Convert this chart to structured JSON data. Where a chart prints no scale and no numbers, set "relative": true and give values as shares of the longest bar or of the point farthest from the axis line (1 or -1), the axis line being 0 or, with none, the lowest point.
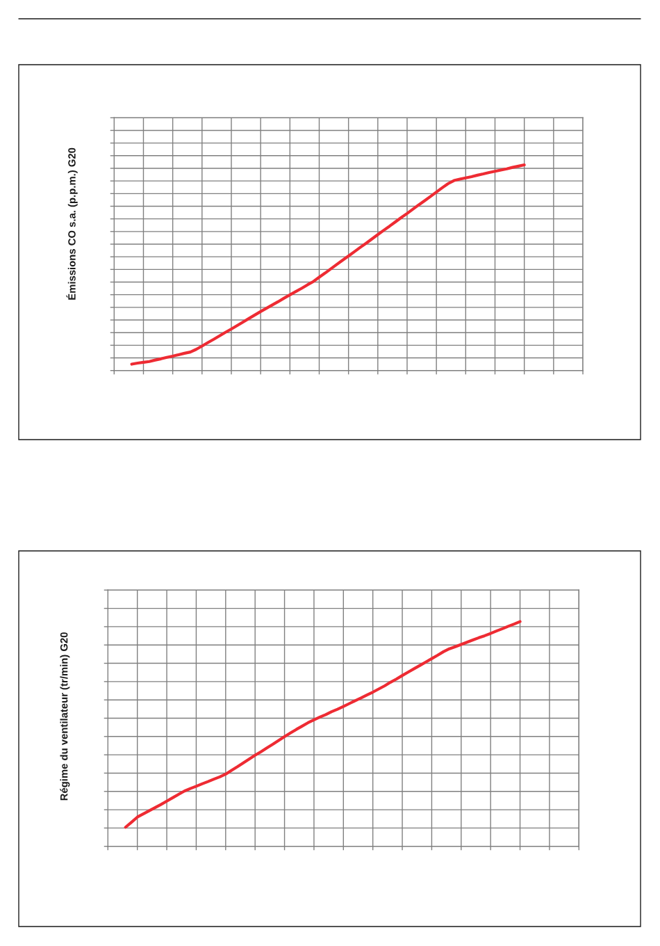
{
  "chart_data": [
    {
      "type": "line",
      "ylabel": "Émissions CO s.a. (p.p.m.) G20",
      "relative": true,
      "grid": true,
      "marker": "none",
      "line_style": "solid",
      "categories": [
        null,
        null,
        null,
        null,
        null,
        null,
        null,
        null,
        null,
        null,
        null,
        null,
        null,
        null,
        null,
        null,
        null,
        null,
        null,
        null,
        null,
        null,
        null,
        null,
        null,
        null,
        null,
        null,
        null,
        null,
        null,
        null,
        null,
        null,
        null,
        null,
        null,
        null,
        null,
        null,
        null,
        null,
        null,
        null,
        null,
        null,
        null,
        null,
        null,
        null,
        null,
        null,
        null,
        null,
        null,
        null,
        null,
        null,
        null,
        null,
        null,
        null,
        null,
        null,
        null,
        null,
        null,
        null,
        null,
        null,
        null,
        null,
        null,
        null,
        null,
        null,
        null,
        null,
        null,
        null,
        null
      ],
      "series": [
        {
          "color": "#ee2b33",
          "values": [
            null,
            null,
            null,
            0.031,
            0.036,
            0.04,
            0.044,
            0.051,
            0.057,
            0.064,
            0.07,
            0.077,
            0.084,
            0.09,
            0.103,
            0.119,
            0.136,
            0.152,
            0.169,
            0.186,
            0.202,
            0.219,
            0.236,
            0.253,
            0.27,
            0.287,
            0.303,
            0.319,
            0.335,
            0.352,
            0.368,
            0.384,
            0.4,
            0.417,
            0.433,
            0.454,
            0.474,
            0.495,
            0.516,
            0.537,
            0.557,
            0.578,
            0.599,
            0.619,
            0.64,
            0.661,
            0.682,
            0.702,
            0.723,
            0.744,
            0.764,
            0.785,
            0.806,
            0.826,
            0.847,
            0.868,
            0.889,
            0.909,
            0.924,
            0.931,
            0.937,
            0.943,
            0.95,
            0.956,
            0.963,
            0.969,
            0.975,
            0.981,
            0.988,
            0.994,
            1,
            null,
            null,
            null,
            null,
            null,
            null,
            null,
            null,
            null,
            null
          ]
        }
      ]
    },
    {
      "type": "line",
      "ylabel": "Régime du ventilateur (tr/min) G20",
      "relative": true,
      "grid": true,
      "marker": "none",
      "line_style": "solid",
      "categories": [
        null,
        null,
        null,
        null,
        null,
        null,
        null,
        null,
        null,
        null,
        null,
        null,
        null,
        null,
        null,
        null,
        null,
        null,
        null,
        null,
        null,
        null,
        null,
        null,
        null,
        null,
        null,
        null,
        null,
        null,
        null,
        null,
        null,
        null,
        null,
        null,
        null,
        null,
        null,
        null,
        null,
        null,
        null,
        null,
        null,
        null,
        null,
        null,
        null,
        null,
        null,
        null,
        null,
        null,
        null,
        null,
        null,
        null,
        null,
        null,
        null,
        null,
        null,
        null,
        null,
        null,
        null,
        null,
        null,
        null,
        null,
        null,
        null,
        null,
        null,
        null,
        null,
        null,
        null,
        null,
        null
      ],
      "series": [
        {
          "color": "#ee2b33",
          "values": [
            null,
            null,
            null,
            0.085,
            0.107,
            0.13,
            0.144,
            0.158,
            0.172,
            0.186,
            0.201,
            0.216,
            0.231,
            0.246,
            0.257,
            0.267,
            0.278,
            0.288,
            0.299,
            0.309,
            0.321,
            0.338,
            0.354,
            0.371,
            0.388,
            0.405,
            0.421,
            0.438,
            0.454,
            0.471,
            0.488,
            0.504,
            0.52,
            0.535,
            0.55,
            0.563,
            0.575,
            0.586,
            0.599,
            0.61,
            0.622,
            0.635,
            0.648,
            0.66,
            0.673,
            0.686,
            0.7,
            0.714,
            0.73,
            0.744,
            0.76,
            0.775,
            0.79,
            0.805,
            0.82,
            0.835,
            0.85,
            0.866,
            0.879,
            0.888,
            0.898,
            0.908,
            0.918,
            0.928,
            0.937,
            0.947,
            0.958,
            0.968,
            0.979,
            0.989,
            1,
            null,
            null,
            null,
            null,
            null,
            null,
            null,
            null,
            null,
            null
          ]
        }
      ]
    }
  ]
}
